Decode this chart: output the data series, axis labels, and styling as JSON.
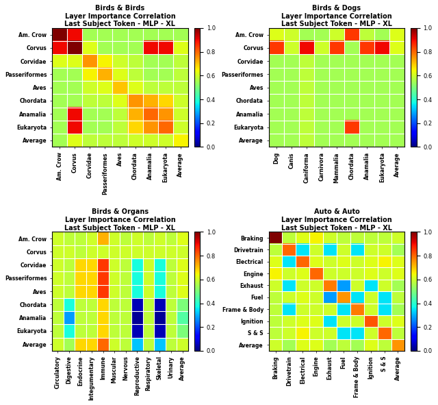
{
  "bb_data": [
    [
      1.0,
      0.9,
      0.55,
      0.55,
      0.55,
      0.55,
      0.55,
      0.55,
      0.55
    ],
    [
      0.9,
      1.0,
      0.62,
      0.55,
      0.55,
      0.55,
      0.9,
      0.9,
      0.62
    ],
    [
      0.62,
      0.62,
      0.75,
      0.65,
      0.6,
      0.58,
      0.55,
      0.55,
      0.58
    ],
    [
      0.55,
      0.55,
      0.65,
      0.72,
      0.62,
      0.58,
      0.55,
      0.55,
      0.58
    ],
    [
      0.55,
      0.55,
      0.6,
      0.62,
      0.7,
      0.62,
      0.58,
      0.58,
      0.58
    ],
    [
      0.55,
      0.55,
      0.58,
      0.58,
      0.62,
      0.75,
      0.72,
      0.68,
      0.6
    ],
    [
      0.55,
      0.9,
      0.55,
      0.55,
      0.58,
      0.72,
      0.8,
      0.75,
      0.6
    ],
    [
      0.55,
      0.9,
      0.55,
      0.55,
      0.58,
      0.68,
      0.75,
      0.8,
      0.6
    ],
    [
      0.55,
      0.62,
      0.58,
      0.58,
      0.58,
      0.6,
      0.6,
      0.6,
      0.65
    ]
  ],
  "bb_ylabels": [
    "Am. Crow",
    "Corvus",
    "Corvidae",
    "Passeriformes",
    "Aves",
    "Chordata",
    "Anamalia",
    "Eukaryota",
    "Average"
  ],
  "bb_xlabels": [
    "Am. Crow",
    "Corvus",
    "Corvidae",
    "Passeriformes",
    "Aves",
    "Chordata",
    "Anamalia",
    "Eukaryota",
    "Average"
  ],
  "bb_title": "Birds & Birds\nLayer Importance Correlation\nLast Subject Token - MLP - XL",
  "bd_data": [
    [
      0.62,
      0.6,
      0.55,
      0.55,
      0.6,
      0.85,
      0.58,
      0.55,
      0.62
    ],
    [
      0.85,
      0.6,
      0.9,
      0.6,
      0.85,
      0.55,
      0.85,
      0.9,
      0.62
    ],
    [
      0.55,
      0.55,
      0.58,
      0.55,
      0.55,
      0.55,
      0.55,
      0.55,
      0.55
    ],
    [
      0.55,
      0.55,
      0.58,
      0.55,
      0.55,
      0.55,
      0.55,
      0.55,
      0.55
    ],
    [
      0.55,
      0.55,
      0.58,
      0.55,
      0.55,
      0.55,
      0.55,
      0.55,
      0.55
    ],
    [
      0.55,
      0.55,
      0.58,
      0.55,
      0.55,
      0.55,
      0.55,
      0.55,
      0.55
    ],
    [
      0.55,
      0.55,
      0.58,
      0.55,
      0.55,
      0.55,
      0.55,
      0.55,
      0.55
    ],
    [
      0.55,
      0.55,
      0.58,
      0.55,
      0.55,
      0.85,
      0.55,
      0.55,
      0.55
    ],
    [
      0.55,
      0.55,
      0.58,
      0.55,
      0.55,
      0.55,
      0.55,
      0.55,
      0.55
    ]
  ],
  "bd_ylabels": [
    "Am. Crow",
    "Corvus",
    "Corvidae",
    "Passeriformes",
    "Aves",
    "Chordata",
    "Anamalia",
    "Eukaryota",
    "Average"
  ],
  "bd_xlabels": [
    "Dog",
    "Canis",
    "Caniforma",
    "Carnivora",
    "Mammalia",
    "Chordata",
    "Anamalia",
    "Eukaryota",
    "Average"
  ],
  "bd_title": "Birds & Dogs\nLayer Importance Correlation\nLast Subject Token - MLP - XL",
  "bo_data": [
    [
      0.6,
      0.58,
      0.58,
      0.6,
      0.72,
      0.6,
      0.58,
      0.6,
      0.58,
      0.6,
      0.58,
      0.62
    ],
    [
      0.6,
      0.6,
      0.58,
      0.6,
      0.6,
      0.6,
      0.6,
      0.6,
      0.6,
      0.6,
      0.6,
      0.6
    ],
    [
      0.6,
      0.58,
      0.68,
      0.68,
      0.85,
      0.6,
      0.58,
      0.38,
      0.6,
      0.38,
      0.58,
      0.62
    ],
    [
      0.6,
      0.58,
      0.68,
      0.68,
      0.85,
      0.6,
      0.58,
      0.38,
      0.6,
      0.38,
      0.58,
      0.62
    ],
    [
      0.6,
      0.58,
      0.68,
      0.68,
      0.85,
      0.6,
      0.58,
      0.38,
      0.6,
      0.38,
      0.58,
      0.62
    ],
    [
      0.58,
      0.38,
      0.58,
      0.58,
      0.68,
      0.58,
      0.58,
      0.05,
      0.58,
      0.05,
      0.58,
      0.5
    ],
    [
      0.58,
      0.28,
      0.58,
      0.58,
      0.68,
      0.58,
      0.58,
      0.02,
      0.58,
      0.02,
      0.58,
      0.45
    ],
    [
      0.58,
      0.38,
      0.58,
      0.58,
      0.68,
      0.58,
      0.58,
      0.05,
      0.58,
      0.05,
      0.58,
      0.5
    ],
    [
      0.6,
      0.55,
      0.68,
      0.68,
      0.8,
      0.6,
      0.58,
      0.32,
      0.58,
      0.32,
      0.58,
      0.6
    ]
  ],
  "bo_ylabels": [
    "Am. Crow",
    "Corvus",
    "Corvidae",
    "Passeriformes",
    "Aves",
    "Chordata",
    "Anamalia",
    "Eukaryota",
    "Average"
  ],
  "bo_xlabels": [
    "Circulatory",
    "Digestive",
    "Endocrine",
    "Integumentary",
    "Immune",
    "Muscular",
    "Nervous",
    "Reproductive",
    "Respiratory",
    "Skeletal",
    "Urinary",
    "Average"
  ],
  "bo_title": "Birds & Organs\nLayer Importance Correlation\nLast Subject Token - MLP - XL",
  "aa_data": [
    [
      1.0,
      0.58,
      0.62,
      0.65,
      0.6,
      0.58,
      0.58,
      0.58,
      0.58,
      0.6
    ],
    [
      0.58,
      0.8,
      0.35,
      0.6,
      0.35,
      0.6,
      0.35,
      0.6,
      0.6,
      0.55
    ],
    [
      0.62,
      0.35,
      0.8,
      0.62,
      0.6,
      0.62,
      0.6,
      0.62,
      0.65,
      0.62
    ],
    [
      0.65,
      0.6,
      0.62,
      0.8,
      0.6,
      0.6,
      0.6,
      0.62,
      0.6,
      0.62
    ],
    [
      0.6,
      0.35,
      0.6,
      0.6,
      0.78,
      0.28,
      0.6,
      0.35,
      0.6,
      0.55
    ],
    [
      0.58,
      0.6,
      0.62,
      0.6,
      0.28,
      0.75,
      0.35,
      0.6,
      0.35,
      0.58
    ],
    [
      0.58,
      0.35,
      0.6,
      0.6,
      0.6,
      0.35,
      0.78,
      0.6,
      0.35,
      0.55
    ],
    [
      0.58,
      0.6,
      0.62,
      0.62,
      0.35,
      0.6,
      0.6,
      0.82,
      0.6,
      0.62
    ],
    [
      0.58,
      0.6,
      0.65,
      0.6,
      0.6,
      0.35,
      0.35,
      0.6,
      0.8,
      0.58
    ],
    [
      0.6,
      0.55,
      0.62,
      0.62,
      0.55,
      0.58,
      0.55,
      0.62,
      0.58,
      0.75
    ]
  ],
  "aa_ylabels": [
    "Braking",
    "Drivetrain",
    "Electrical",
    "Engine",
    "Exhaust",
    "Fuel",
    "Frame & Body",
    "Ignition",
    "S & S",
    "Average"
  ],
  "aa_xlabels": [
    "Braking",
    "Drivetrain",
    "Electrical",
    "Engine",
    "Exhaust",
    "Fuel",
    "Frame & Body",
    "Ignition",
    "S & S",
    "Average"
  ],
  "aa_title": "Auto & Auto\nLayer Importance Correlation\nLast Subject Token - MLP - XL",
  "cmap": "jet",
  "vmin": 0.0,
  "vmax": 1.0,
  "cbar_ticks": [
    0.0,
    0.2,
    0.4,
    0.6,
    0.8,
    1.0
  ]
}
